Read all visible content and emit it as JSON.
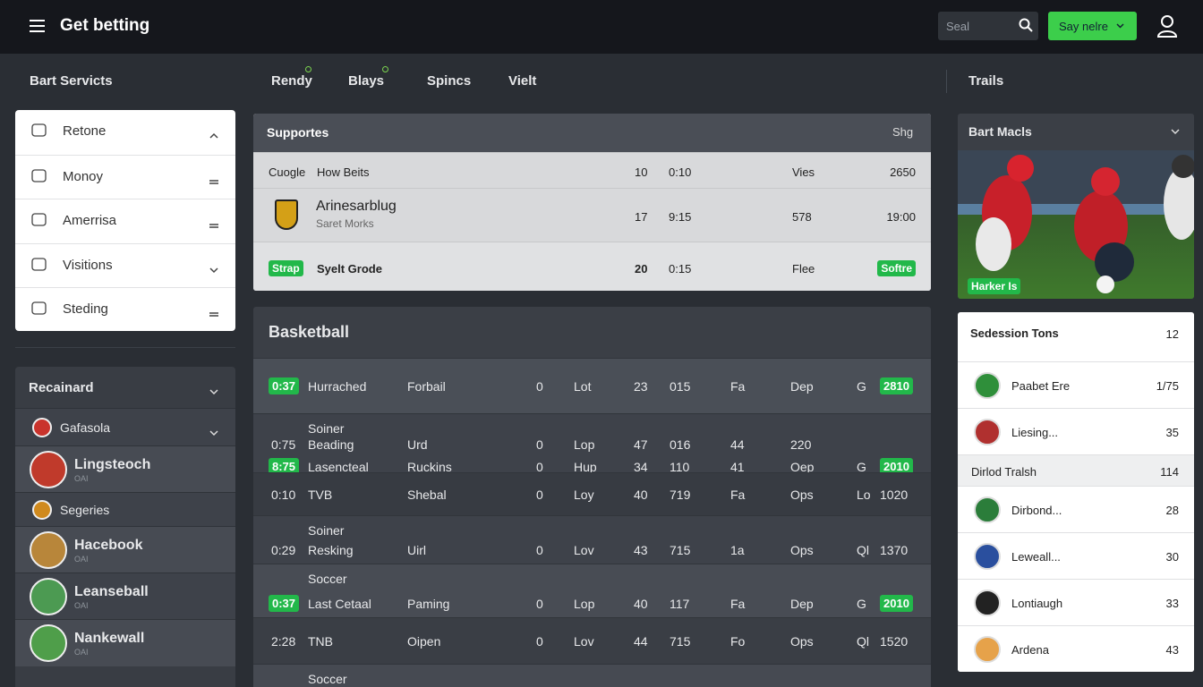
{
  "header": {
    "title": "Get betting",
    "search": "Seal",
    "button": "Say nelre"
  },
  "left": {
    "heading": "Bart Servicts",
    "menu": [
      "Retone",
      "Monoy",
      "Amerrisa",
      "Visitions",
      "Steding"
    ],
    "panel": {
      "title": "Recainard",
      "items": [
        {
          "name": "Gafasola"
        },
        {
          "name": "Lingsteoch",
          "sub": "OAI"
        },
        {
          "name": "Segeries"
        },
        {
          "name": "Hacebook",
          "sub": "OAI"
        },
        {
          "name": "Leanseball",
          "sub": "OAI"
        },
        {
          "name": "Nankewall",
          "sub": "OAI"
        }
      ]
    }
  },
  "tabs": [
    "Rendy",
    "Blays",
    "Spincs",
    "Vielt"
  ],
  "supports": {
    "title": "Supportes",
    "right": "Shg",
    "rows": [
      {
        "name": "Cuogle",
        "sub": "How Beits",
        "cells": [
          "10",
          "0:10",
          "Vies",
          "2650"
        ]
      },
      {
        "name": "Arinesarblug",
        "sub": "Saret Morks",
        "cells": [
          "17",
          "9:15",
          "578",
          "19:00"
        ]
      },
      {
        "name": "Strap",
        "sub": "Syelt Grode",
        "cells": [
          "20",
          "0:15",
          "Flee",
          "Softre"
        ]
      }
    ]
  },
  "basketball": {
    "title": "Basketball",
    "rows": [
      {
        "lines": [
          [
            "0:37",
            "Hurrached",
            "Forbail",
            "0",
            "Lot",
            "23",
            "015",
            "Fa",
            "Dep",
            "G",
            "2810"
          ]
        ]
      },
      {
        "label": "Soiner",
        "lines": [
          [
            "0:75",
            "Beading",
            "Urd",
            "0",
            "Lop",
            "47",
            "016",
            "44",
            "220"
          ],
          [
            "8:75",
            "Lasencteal",
            "Ruckins",
            "0",
            "Hup",
            "34",
            "110",
            "41",
            "Oep",
            "G",
            "2010"
          ]
        ]
      },
      {
        "lines": [
          [
            "0:10",
            "TVB",
            "Shebal",
            "0",
            "Loy",
            "40",
            "719",
            "Fa",
            "Ops",
            "Lo",
            "1020"
          ]
        ]
      },
      {
        "label": "Soiner",
        "lines": [
          [
            "0:29",
            "Resking",
            "Uirl",
            "0",
            "Lov",
            "43",
            "715",
            "1a",
            "Ops",
            "Ql",
            "1370"
          ]
        ]
      },
      {
        "label": "Soccer",
        "lines": [
          [
            "0:37",
            "Last Cetaal",
            "Paming",
            "0",
            "Lop",
            "40",
            "117",
            "Fa",
            "Dep",
            "G",
            "2010"
          ]
        ]
      },
      {
        "lines": [
          [
            "2:28",
            "TNB",
            "Oipen",
            "0",
            "Lov",
            "44",
            "715",
            "Fo",
            "Ops",
            "Ql",
            "1520"
          ]
        ]
      },
      {
        "label": "Soccer",
        "lines": []
      }
    ]
  },
  "right": {
    "heading": "Trails",
    "media": {
      "title": "Bart Macls",
      "badge": "Harker Is"
    },
    "list": {
      "title": "Sedession Tons",
      "count": "12",
      "items": [
        [
          "Paabet Ere",
          "1/75"
        ],
        [
          "Liesing...",
          "35"
        ],
        [
          "Dirlod Tralsh",
          "114"
        ],
        [
          "Dirbond...",
          "28"
        ],
        [
          "Leweall...",
          "30"
        ],
        [
          "Lontiaugh",
          "33"
        ],
        [
          "Ardena",
          "43"
        ]
      ]
    }
  }
}
